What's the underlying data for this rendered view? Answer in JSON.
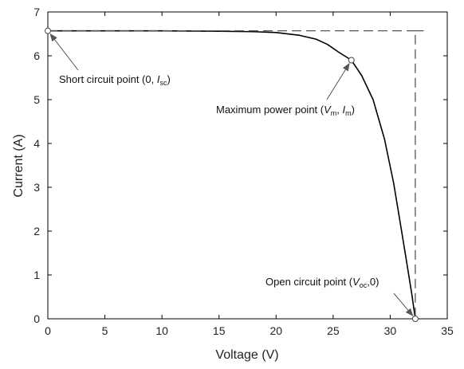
{
  "chart_data": {
    "type": "line",
    "xlabel": "Voltage (V)",
    "ylabel": "Current (A)",
    "xlim": [
      0,
      35
    ],
    "ylim": [
      0,
      7
    ],
    "x_ticks": [
      0,
      5,
      10,
      15,
      20,
      25,
      30,
      35
    ],
    "y_ticks": [
      0,
      1,
      2,
      3,
      4,
      5,
      6,
      7
    ],
    "grid": false,
    "series": [
      {
        "style": "solid",
        "color": "#000000",
        "x": [
          0,
          5,
          10,
          15,
          18,
          20,
          22,
          23.5,
          24.5,
          25.5,
          26.6,
          27.5,
          28.5,
          29.5,
          30.3,
          31,
          31.5,
          31.9,
          32.2
        ],
        "y": [
          6.57,
          6.57,
          6.57,
          6.56,
          6.55,
          6.53,
          6.47,
          6.38,
          6.26,
          6.08,
          5.9,
          5.55,
          5.0,
          4.1,
          3.1,
          2.0,
          1.2,
          0.55,
          0
        ]
      },
      {
        "style": "dashed",
        "color": "#555555",
        "x": [
          0,
          32.9,
          32.2,
          32.2
        ],
        "y": [
          6.57,
          6.57,
          6.57,
          0
        ]
      }
    ],
    "points": [
      {
        "label": "Short circuit point",
        "x": 0,
        "y": 6.57
      },
      {
        "label": "Maximum power point",
        "x": 26.6,
        "y": 5.9
      },
      {
        "label": "Open circuit point",
        "x": 32.2,
        "y": 0
      }
    ],
    "annotations": {
      "short_circuit": {
        "main": "Short circuit point (0, ",
        "sym": "I",
        "sub": "sc",
        "close": ")"
      },
      "max_power": {
        "main": "Maximum power point (",
        "sym1": "V",
        "sub1": "m",
        "sep": ", ",
        "sym2": "I",
        "sub2": "m",
        "close": ")"
      },
      "open_circuit": {
        "main": "Open circuit point (",
        "sym": "V",
        "sub": "oc",
        "close": ",0)"
      }
    }
  }
}
